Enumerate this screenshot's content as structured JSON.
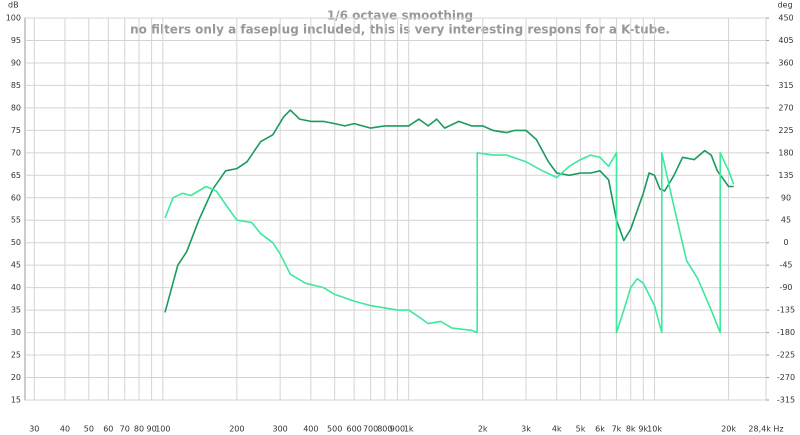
{
  "chart_data": {
    "type": "line",
    "title": "1/6 octave smoothing",
    "subtitle": "no filters only a faseplug included, this is very interesting respons for a K-tube.",
    "y_label": "dB",
    "y2_label": "deg",
    "log_x": true,
    "grid": true,
    "xlim": [
      27.5,
      28400
    ],
    "xticks": [
      30,
      40,
      50,
      60,
      70,
      80,
      90,
      100,
      200,
      300,
      400,
      500,
      600,
      700,
      800,
      900,
      {
        "value": 1000,
        "label": "1k"
      },
      {
        "value": 2000,
        "label": "2k"
      },
      {
        "value": 3000,
        "label": "3k"
      },
      {
        "value": 4000,
        "label": "4k"
      },
      {
        "value": 5000,
        "label": "5k"
      },
      {
        "value": 6000,
        "label": "6k"
      },
      {
        "value": 7000,
        "label": "7k"
      },
      {
        "value": 8000,
        "label": "8k"
      },
      {
        "value": 9000,
        "label": "9k"
      },
      {
        "value": 10000,
        "label": "10k"
      },
      {
        "value": 20000,
        "label": "20k"
      },
      {
        "value": 28400,
        "label": "28,4k Hz"
      }
    ],
    "ylim": [
      15,
      100
    ],
    "yticks": [
      15,
      20,
      25,
      30,
      35,
      40,
      45,
      50,
      55,
      60,
      65,
      70,
      75,
      80,
      85,
      90,
      95,
      100
    ],
    "y2lim": [
      -315,
      450
    ],
    "y2ticks": [
      -315,
      -270,
      -225,
      -180,
      -135,
      -90,
      -45,
      0,
      45,
      90,
      135,
      180,
      225,
      270,
      315,
      360,
      405,
      450
    ],
    "series": [
      {
        "color": "#1b9a5c",
        "x": [
          102,
          115,
          125,
          140,
          160,
          180,
          200,
          220,
          250,
          280,
          310,
          330,
          360,
          400,
          450,
          500,
          550,
          600,
          700,
          800,
          900,
          1000,
          1100,
          1200,
          1300,
          1400,
          1600,
          1800,
          2000,
          2200,
          2500,
          2700,
          3000,
          3300,
          3700,
          4000,
          4500,
          5000,
          5500,
          6000,
          6500,
          7000,
          7500,
          8000,
          9000,
          9500,
          10000,
          10500,
          11000,
          12000,
          13000,
          14500,
          16000,
          17000,
          18000,
          20000,
          21000
        ],
        "values": [
          34.5,
          45,
          48,
          55,
          62,
          66,
          66.5,
          68,
          72.5,
          74,
          78,
          79.5,
          77.5,
          77,
          77,
          76.5,
          76,
          76.5,
          75.5,
          76,
          76,
          76,
          77.5,
          76,
          77.5,
          75.5,
          77,
          76,
          76,
          75,
          74.5,
          75,
          75,
          73,
          68,
          65.5,
          65,
          65.5,
          65.5,
          66,
          64,
          55,
          50.5,
          53,
          61,
          65.5,
          65,
          62,
          61.5,
          65,
          69,
          68.5,
          70.5,
          69.5,
          66,
          62.5,
          62.5
        ]
      },
      {
        "color": "#3ee89c",
        "axis": "y2",
        "x": [
          102,
          110,
          120,
          130,
          150,
          165,
          180,
          200,
          230,
          250,
          280,
          300,
          330,
          380,
          450,
          500,
          600,
          700,
          800,
          900,
          1000,
          1100,
          1200,
          1350,
          1500,
          1800,
          1900,
          1900,
          2200,
          2500,
          3000,
          3500,
          4000,
          4500,
          5000,
          5500,
          6000,
          6500,
          7000,
          7000,
          7500,
          8000,
          8500,
          9000,
          10000,
          10700,
          10700,
          12000,
          13500,
          15000,
          17000,
          18500,
          18500,
          20000,
          21000
        ],
        "values": [
          49.5,
          90,
          99,
          94.5,
          112.5,
          103.5,
          76.5,
          45,
          40.5,
          18,
          0,
          -22.5,
          -63,
          -81,
          -90,
          -103.5,
          -117,
          -126,
          -130.5,
          -135,
          -135,
          -148.5,
          -162,
          -157.5,
          -171,
          -175.5,
          -180,
          180,
          175.5,
          175.5,
          162,
          144,
          130.5,
          153,
          166.5,
          175.5,
          171,
          153,
          180,
          -180,
          -135,
          -90,
          -72,
          -81,
          -126,
          -180,
          180,
          72,
          -36,
          -72,
          -135,
          -180,
          180,
          144,
          117
        ]
      }
    ]
  }
}
